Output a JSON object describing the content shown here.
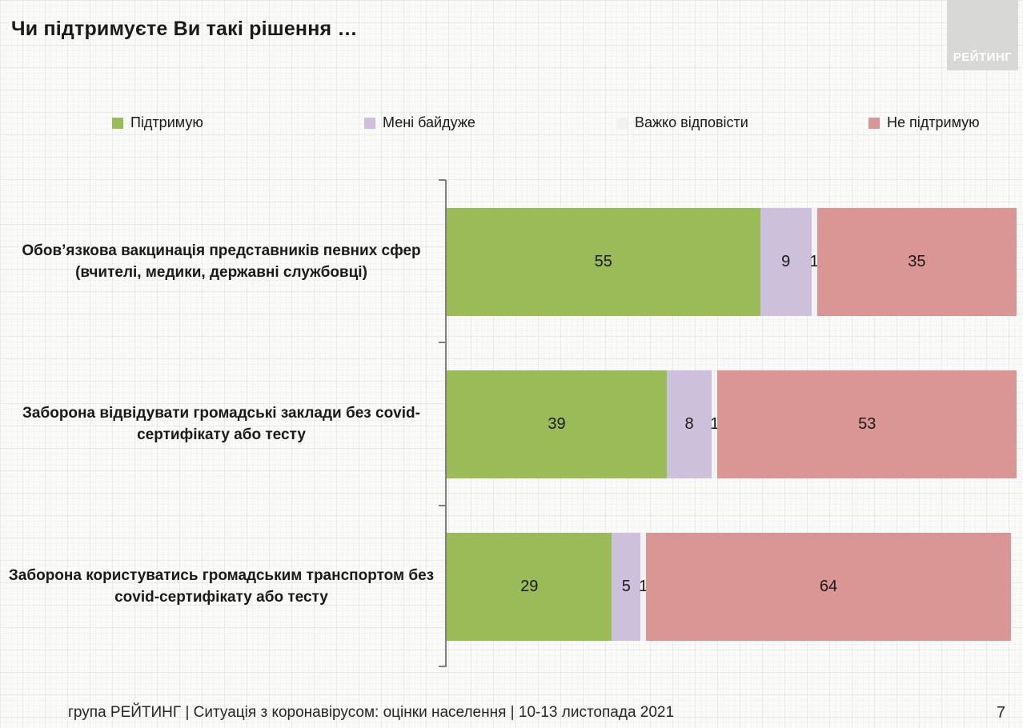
{
  "page": {
    "title": "Чи підтримуєте Ви такі рішення …",
    "footer": "група РЕЙТИНГ | Ситуація з коронавірусом: оцінки населення | 10-13 листопада 2021",
    "page_number": "7",
    "logo_text": "РЕЙТИНГ",
    "logo_bg_color": "#d8d8d6"
  },
  "chart_data": {
    "type": "bar",
    "orientation": "horizontal",
    "stacked": true,
    "title": "Чи підтримуєте Ви такі рішення …",
    "xlabel": "",
    "ylabel": "",
    "xlim": [
      0,
      100
    ],
    "grid": false,
    "legend_position": "top",
    "value_labels": true,
    "categories": [
      "Обов’язкова вакцинація представників певних сфер (вчителі, медики, державні службовці)",
      "Заборона відвідувати громадські заклади без covid-сертифікату або тесту",
      "Заборона користуватись громадським транспортом без covid-сертифікату або тесту"
    ],
    "series": [
      {
        "name": "Підтримую",
        "color": "#9bbb59",
        "values": [
          55,
          39,
          29
        ]
      },
      {
        "name": "Мені байдуже",
        "color": "#ccc0da",
        "values": [
          9,
          8,
          5
        ]
      },
      {
        "name": "Важко відповісти",
        "color": "#f2f2f2",
        "values": [
          1,
          1,
          1
        ]
      },
      {
        "name": "Не підтримую",
        "color": "#d99694",
        "values": [
          35,
          53,
          64
        ]
      }
    ]
  },
  "layout_hints": {
    "row_tops": [
      226,
      429,
      632
    ],
    "axis_tick_tops": [
      224,
      427,
      631,
      832
    ]
  }
}
